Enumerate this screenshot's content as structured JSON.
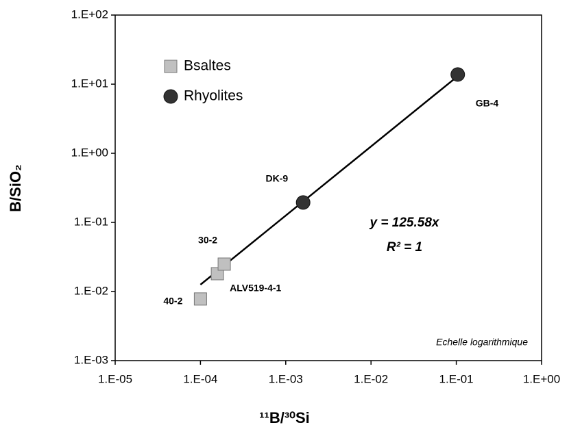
{
  "chart_data": {
    "type": "scatter",
    "xlabel": "¹¹B/³⁰Si",
    "ylabel": "B/SiO₂",
    "log_x": true,
    "log_y": true,
    "xlim": [
      1e-05,
      1
    ],
    "ylim": [
      0.001,
      100
    ],
    "xticks": [
      {
        "value": 1e-05,
        "label": "1.E-05"
      },
      {
        "value": 0.0001,
        "label": "1.E-04"
      },
      {
        "value": 0.001,
        "label": "1.E-03"
      },
      {
        "value": 0.01,
        "label": "1.E-02"
      },
      {
        "value": 0.1,
        "label": "1.E-01"
      },
      {
        "value": 1,
        "label": "1.E+00"
      }
    ],
    "yticks": [
      {
        "value": 0.001,
        "label": "1.E-03"
      },
      {
        "value": 0.01,
        "label": "1.E-02"
      },
      {
        "value": 0.1,
        "label": "1.E-01"
      },
      {
        "value": 1,
        "label": "1.E+00"
      },
      {
        "value": 10,
        "label": "1.E+01"
      },
      {
        "value": 100,
        "label": "1.E+02"
      }
    ],
    "legend": "upper left",
    "series": [
      {
        "name": "Bsaltes",
        "color": "#c0c0c0",
        "marker": "square",
        "x": [
          0.0001,
          0.000158,
          0.00019
        ],
        "values": [
          0.0078,
          0.0181,
          0.0249
        ],
        "labels": [
          "40-2",
          "ALV519-4-1",
          "30-2"
        ]
      },
      {
        "name": "Rhyolites",
        "color": "#333333",
        "marker": "circle",
        "x": [
          0.0016,
          0.104
        ],
        "values": [
          0.194,
          13.8
        ],
        "labels": [
          "DK-9",
          "GB-4"
        ]
      }
    ],
    "trendline": {
      "x": [
        0.0001,
        0.104
      ],
      "values": [
        0.01256,
        13.06
      ]
    },
    "annotations": [
      "y = 125.58x",
      "R² = 1",
      "Echelle logarithmique"
    ]
  }
}
